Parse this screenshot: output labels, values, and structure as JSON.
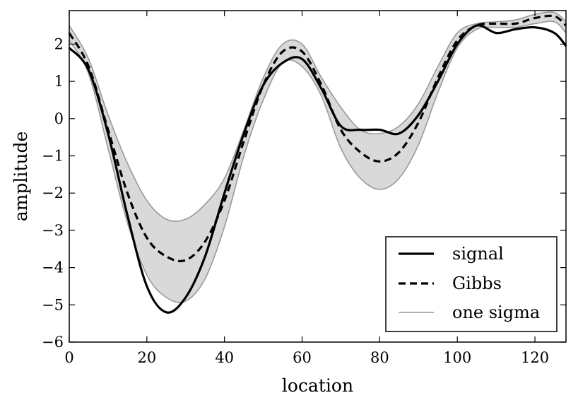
{
  "chart_data": {
    "type": "line",
    "xlabel": "location",
    "ylabel": "amplitude",
    "xlim": [
      0,
      128
    ],
    "ylim": [
      -6,
      2.9
    ],
    "xticks": [
      0,
      20,
      40,
      60,
      80,
      100,
      120
    ],
    "yticks": [
      -6,
      -5,
      -4,
      -3,
      -2,
      -1,
      0,
      1,
      2
    ],
    "ytick_labels": [
      "−6",
      "−5",
      "−4",
      "−3",
      "−2",
      "−1",
      "0",
      "1",
      "2"
    ],
    "grid": false,
    "legend_position": "lower-right",
    "x": [
      0,
      5,
      10,
      15,
      20,
      25,
      30,
      35,
      40,
      45,
      50,
      55,
      60,
      65,
      70,
      75,
      80,
      85,
      90,
      95,
      100,
      105,
      110,
      115,
      120,
      125,
      128
    ],
    "series": [
      {
        "name": "signal",
        "style": "solid-thick",
        "color": "#000000",
        "values": [
          1.9,
          1.3,
          -0.4,
          -2.6,
          -4.5,
          -5.2,
          -4.8,
          -3.7,
          -2.0,
          -0.4,
          0.9,
          1.5,
          1.6,
          0.8,
          -0.2,
          -0.3,
          -0.3,
          -0.4,
          0.1,
          1.0,
          2.0,
          2.5,
          2.3,
          2.4,
          2.45,
          2.3,
          1.95
        ]
      },
      {
        "name": "Gibbs",
        "style": "dashed",
        "color": "#000000",
        "values": [
          2.3,
          1.4,
          -0.3,
          -2.0,
          -3.2,
          -3.7,
          -3.8,
          -3.3,
          -2.2,
          -0.6,
          0.9,
          1.8,
          1.8,
          0.9,
          -0.3,
          -0.9,
          -1.15,
          -0.9,
          -0.1,
          1.1,
          2.1,
          2.5,
          2.55,
          2.55,
          2.7,
          2.75,
          2.5
        ]
      },
      {
        "name": "one sigma",
        "style": "band",
        "color": "#999999",
        "fill": "#d9d9d9",
        "upper": [
          2.5,
          1.6,
          0.1,
          -1.2,
          -2.2,
          -2.7,
          -2.7,
          -2.3,
          -1.6,
          -0.3,
          1.1,
          2.0,
          2.0,
          1.1,
          0.3,
          -0.3,
          -0.4,
          -0.2,
          0.4,
          1.4,
          2.3,
          2.55,
          2.6,
          2.65,
          2.8,
          2.85,
          2.6
        ],
        "lower": [
          2.1,
          1.2,
          -0.8,
          -2.8,
          -4.2,
          -4.8,
          -4.9,
          -4.3,
          -2.9,
          -1.0,
          0.5,
          1.5,
          1.4,
          0.6,
          -0.8,
          -1.6,
          -1.9,
          -1.6,
          -0.7,
          0.7,
          1.9,
          2.4,
          2.45,
          2.45,
          2.55,
          2.6,
          2.3
        ]
      }
    ]
  }
}
